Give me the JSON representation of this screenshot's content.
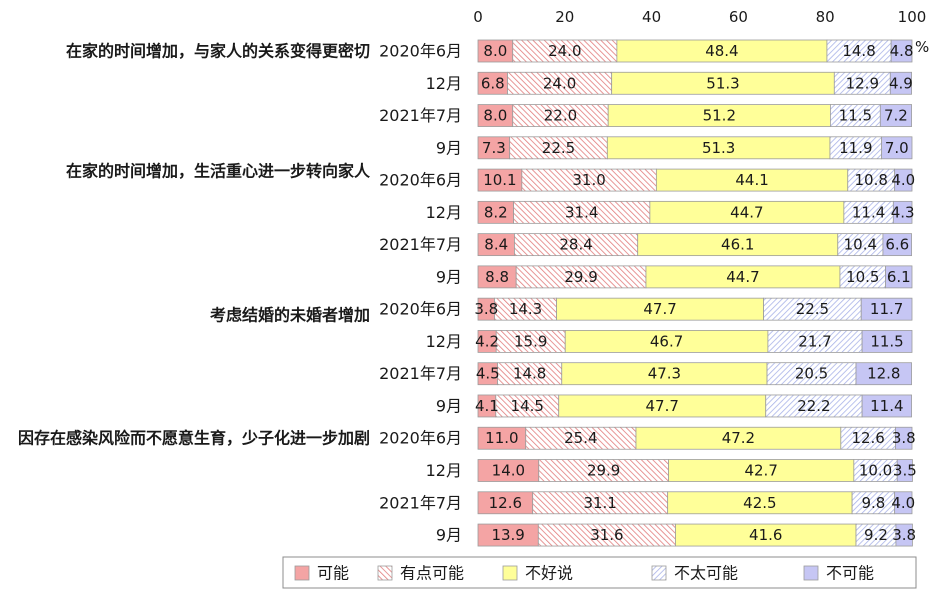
{
  "chart_data": {
    "type": "bar",
    "orientation": "horizontal",
    "stacked": true,
    "x_unit": "%",
    "xlim": [
      0,
      100
    ],
    "x_ticks": [
      0,
      20,
      40,
      60,
      80,
      100
    ],
    "x_axis_position": "top",
    "grid": false,
    "legend_position": "bottom",
    "groups": [
      {
        "label": "在家的时间增加，与家人的关系变得更密切",
        "periods": [
          "2020年6月",
          "12月",
          "2021年7月",
          "9月"
        ]
      },
      {
        "label": "在家的时间增加，生活重心进一步转向家人",
        "periods": [
          "2020年6月",
          "12月",
          "2021年7月",
          "9月"
        ]
      },
      {
        "label": "考虑结婚的未婚者增加",
        "periods": [
          "2020年6月",
          "12月",
          "2021年7月",
          "9月"
        ]
      },
      {
        "label": "因存在感染风险而不愿意生育，少子化进一步加剧",
        "periods": [
          "2020年6月",
          "12月",
          "2021年7月",
          "9月"
        ]
      }
    ],
    "series": [
      {
        "name": "可能",
        "color": "#f4a4a4",
        "fill": "solid",
        "values": [
          8.0,
          6.8,
          8.0,
          7.3,
          10.1,
          8.2,
          8.4,
          8.8,
          3.8,
          4.2,
          4.5,
          4.1,
          11.0,
          14.0,
          12.6,
          13.9
        ]
      },
      {
        "name": "有点可能",
        "color": "#e27c7c",
        "fill": "hatch",
        "values": [
          24.0,
          24.0,
          22.0,
          22.5,
          31.0,
          31.4,
          28.4,
          29.9,
          14.3,
          15.9,
          14.8,
          14.5,
          25.4,
          29.9,
          31.1,
          31.6
        ]
      },
      {
        "name": "不好说",
        "color": "#ffff99",
        "fill": "solid",
        "values": [
          48.4,
          51.3,
          51.2,
          51.3,
          44.1,
          44.7,
          46.1,
          44.7,
          47.7,
          46.7,
          47.3,
          47.7,
          47.2,
          42.7,
          42.5,
          41.6
        ]
      },
      {
        "name": "不太可能",
        "color": "#a9b3e8",
        "fill": "hatch",
        "values": [
          14.8,
          12.9,
          11.5,
          11.9,
          10.8,
          11.4,
          10.4,
          10.5,
          22.5,
          21.7,
          20.5,
          22.2,
          12.6,
          10.0,
          9.8,
          9.2
        ]
      },
      {
        "name": "不可能",
        "color": "#c6c6f4",
        "fill": "solid",
        "values": [
          4.8,
          4.9,
          7.2,
          7.0,
          4.0,
          4.3,
          6.6,
          6.1,
          11.7,
          11.5,
          12.8,
          11.4,
          3.8,
          3.5,
          4.0,
          3.8
        ]
      }
    ]
  }
}
